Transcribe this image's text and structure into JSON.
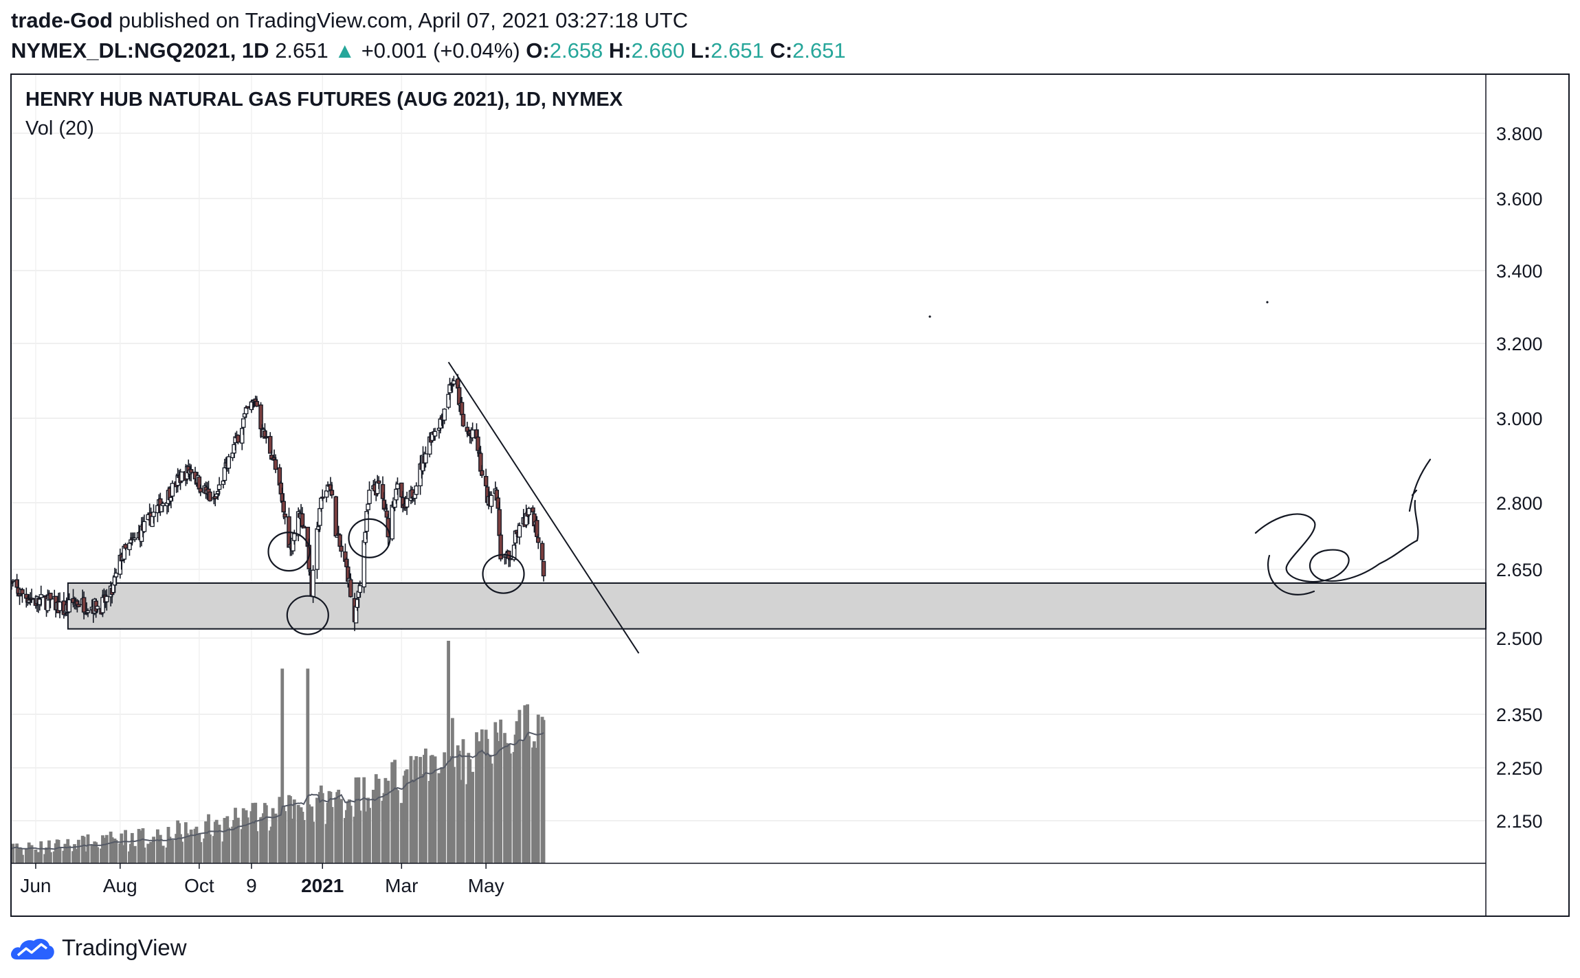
{
  "header": {
    "author": "trade-God",
    "published_text": "published on TradingView.com, April 07, 2021 03:27:18 UTC",
    "symbol_interval": "NYMEX_DL:NGQ2021, 1D",
    "last_price": "2.651",
    "change_arrow": "▲",
    "change": "+0.001 (+0.04%)",
    "o_label": "O:",
    "o_value": "2.658",
    "h_label": "H:",
    "h_value": "2.660",
    "l_label": "L:",
    "l_value": "2.651",
    "c_label": "C:",
    "c_value": "2.651"
  },
  "chart": {
    "legend_title": "HENRY HUB NATURAL GAS FUTURES (AUG 2021), 1D, NYMEX",
    "legend_volume": "Vol (20)"
  },
  "footer": {
    "brand": "TradingView",
    "icon": "tradingview-cloud-logo-icon"
  },
  "colors": {
    "up_candle": "#ffffff",
    "down_candle": "#7b3f3f",
    "wick": "#131722",
    "volume_bar": "#7d7d7d",
    "teal": "#26a69a",
    "support_zone": "#d3d3d3"
  },
  "chart_data": {
    "type": "candlestick",
    "y_axis_ticks": [
      "3.800",
      "3.600",
      "3.400",
      "3.200",
      "3.000",
      "2.800",
      "2.650",
      "2.500",
      "2.350",
      "2.250",
      "2.150"
    ],
    "x_axis_ticks": [
      "Jun",
      "Aug",
      "Oct",
      "9",
      "2021",
      "Mar",
      "May"
    ],
    "ylim": [
      2.1,
      3.9
    ],
    "grid": true,
    "price_path": [
      [
        "2020-05-11",
        2.62
      ],
      [
        "2020-05-20",
        2.6
      ],
      [
        "2020-06-01",
        2.58
      ],
      [
        "2020-06-12",
        2.58
      ],
      [
        "2020-06-22",
        2.56
      ],
      [
        "2020-07-01",
        2.58
      ],
      [
        "2020-07-10",
        2.57
      ],
      [
        "2020-07-20",
        2.57
      ],
      [
        "2020-07-28",
        2.6
      ],
      [
        "2020-08-04",
        2.68
      ],
      [
        "2020-08-15",
        2.72
      ],
      [
        "2020-08-27",
        2.77
      ],
      [
        "2020-09-08",
        2.82
      ],
      [
        "2020-09-17",
        2.86
      ],
      [
        "2020-09-25",
        2.88
      ],
      [
        "2020-10-02",
        2.84
      ],
      [
        "2020-10-12",
        2.8
      ],
      [
        "2020-10-20",
        2.87
      ],
      [
        "2020-10-30",
        2.96
      ],
      [
        "2020-11-06",
        3.02
      ],
      [
        "2020-11-12",
        3.05
      ],
      [
        "2020-11-17",
        2.97
      ],
      [
        "2020-11-25",
        2.91
      ],
      [
        "2020-12-03",
        2.78
      ],
      [
        "2020-12-08",
        2.7
      ],
      [
        "2020-12-15",
        2.78
      ],
      [
        "2020-12-20",
        2.73
      ],
      [
        "2020-12-24",
        2.6
      ],
      [
        "2020-12-30",
        2.79
      ],
      [
        "2021-01-06",
        2.85
      ],
      [
        "2021-01-12",
        2.72
      ],
      [
        "2021-01-20",
        2.64
      ],
      [
        "2021-01-25",
        2.53
      ],
      [
        "2021-01-29",
        2.63
      ],
      [
        "2021-02-05",
        2.82
      ],
      [
        "2021-02-13",
        2.84
      ],
      [
        "2021-02-19",
        2.74
      ],
      [
        "2021-02-25",
        2.84
      ],
      [
        "2021-03-03",
        2.78
      ],
      [
        "2021-03-10",
        2.83
      ],
      [
        "2021-03-17",
        2.9
      ],
      [
        "2021-03-23",
        2.96
      ],
      [
        "2021-03-31",
        3.0
      ],
      [
        "2021-04-07",
        3.1
      ],
      [
        "2021-04-12",
        3.07
      ],
      [
        "2021-04-16",
        2.98
      ],
      [
        "2021-04-21",
        2.96
      ],
      [
        "2021-04-26",
        2.95
      ],
      [
        "2021-04-30",
        2.86
      ],
      [
        "2021-05-05",
        2.8
      ],
      [
        "2021-05-10",
        2.85
      ],
      [
        "2021-05-14",
        2.69
      ],
      [
        "2021-05-20",
        2.67
      ],
      [
        "2021-05-25",
        2.72
      ],
      [
        "2021-06-01",
        2.76
      ],
      [
        "2021-06-07",
        2.78
      ],
      [
        "2021-06-11",
        2.72
      ],
      [
        "2021-06-15",
        2.65
      ]
    ],
    "volume_spikes": [
      [
        "2020-12-02",
        6.3
      ],
      [
        "2020-12-21",
        6.3
      ],
      [
        "2021-04-05",
        7.2
      ],
      [
        "2021-04-08",
        4.7
      ]
    ],
    "support_zone": [
      2.52,
      2.62
    ],
    "downtrend_line": [
      [
        "2021-04-05",
        3.15
      ],
      [
        "2021-08-25",
        2.47
      ]
    ]
  }
}
